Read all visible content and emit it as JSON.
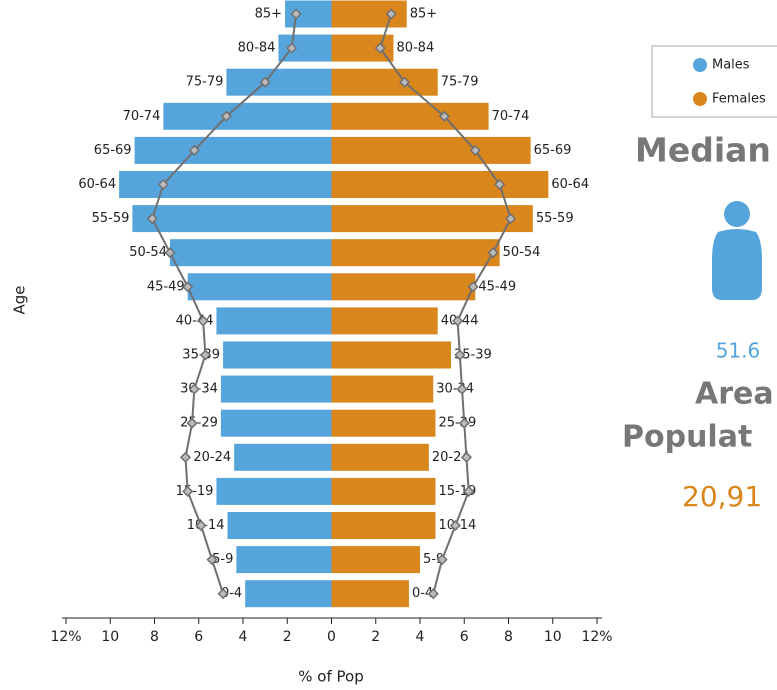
{
  "chart_data": {
    "type": "pyramid",
    "categories": [
      "85+",
      "80-84",
      "75-79",
      "70-74",
      "65-69",
      "60-64",
      "55-59",
      "50-54",
      "45-49",
      "40-44",
      "35-39",
      "30-34",
      "25-29",
      "20-24",
      "15-19",
      "10-14",
      "5-9",
      "0-4"
    ],
    "series": [
      {
        "name": "Males",
        "color": "#55a5dc",
        "side": "left",
        "values": [
          2.1,
          2.4,
          4.75,
          7.6,
          8.9,
          9.6,
          9.0,
          7.3,
          6.5,
          5.2,
          4.9,
          5.0,
          5.0,
          4.4,
          5.2,
          4.7,
          4.3,
          3.9
        ]
      },
      {
        "name": "Females",
        "color": "#d9861c",
        "side": "right",
        "values": [
          3.4,
          2.8,
          4.8,
          7.1,
          9.0,
          9.8,
          9.1,
          7.6,
          6.5,
          4.8,
          5.4,
          4.6,
          4.7,
          4.4,
          4.7,
          4.7,
          4.0,
          3.5
        ]
      },
      {
        "color": "#707070",
        "side": "left",
        "style": "line",
        "values": [
          1.6,
          1.8,
          3.0,
          4.75,
          6.2,
          7.6,
          8.1,
          7.3,
          6.5,
          5.8,
          5.7,
          6.2,
          6.3,
          6.6,
          6.5,
          5.9,
          5.4,
          4.9
        ]
      },
      {
        "color": "#707070",
        "side": "right",
        "style": "line",
        "values": [
          2.7,
          2.2,
          3.3,
          5.1,
          6.5,
          7.6,
          8.1,
          7.3,
          6.4,
          5.7,
          5.8,
          5.9,
          6.0,
          6.1,
          6.2,
          5.6,
          5.0,
          4.6
        ]
      }
    ],
    "xlabel": "% of Pop",
    "ylabel": "Age",
    "xlim": [
      -12,
      12
    ],
    "xticks": [
      {
        "value": -12,
        "label": "12%"
      },
      {
        "value": -10,
        "label": "10"
      },
      {
        "value": -8,
        "label": "8"
      },
      {
        "value": -6,
        "label": "6"
      },
      {
        "value": -4,
        "label": "4"
      },
      {
        "value": -2,
        "label": "2"
      },
      0,
      2,
      4,
      6,
      8,
      10,
      {
        "value": 12,
        "label": "12%"
      }
    ]
  },
  "side_panel": {
    "median_label": "Median",
    "median_value": "51.6",
    "area_label": "Area",
    "population_label": "Populat",
    "population_value": "20,91"
  }
}
